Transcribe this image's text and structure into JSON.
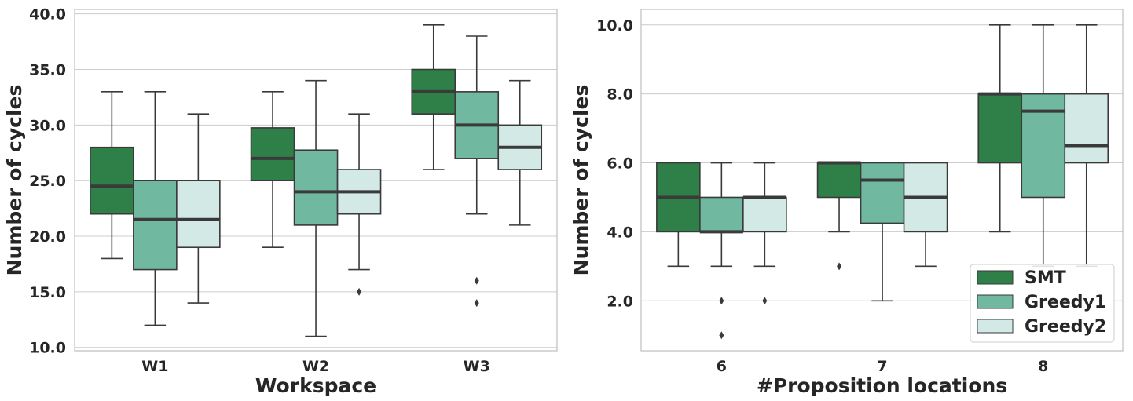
{
  "colors": {
    "SMT": "#2e7f48",
    "Greedy1": "#70b8a0",
    "Greedy2": "#d2e9e5",
    "line": "#3a3a3a",
    "grid": "#cccccc",
    "axis": "#bfbfbf",
    "text": "#262626"
  },
  "chart_data": [
    {
      "type": "box",
      "title": "",
      "xlabel": "Workspace",
      "ylabel": "Number of cycles",
      "categories": [
        "W1",
        "W2",
        "W3"
      ],
      "ylim": [
        9.7,
        40.4
      ],
      "yticks": [
        10,
        15,
        20,
        25,
        30,
        35,
        40
      ],
      "ytick_labels": [
        "10.0",
        "15.0",
        "20.0",
        "25.0",
        "30.0",
        "35.0",
        "40.0"
      ],
      "grid": true,
      "series": [
        {
          "name": "SMT",
          "boxes": [
            {
              "whislo": 18,
              "q1": 22,
              "med": 24.5,
              "q3": 28,
              "whishi": 33,
              "fliers": []
            },
            {
              "whislo": 19,
              "q1": 25,
              "med": 27,
              "q3": 29.75,
              "whishi": 33,
              "fliers": []
            },
            {
              "whislo": 26,
              "q1": 31,
              "med": 33,
              "q3": 35,
              "whishi": 39,
              "fliers": []
            }
          ]
        },
        {
          "name": "Greedy1",
          "boxes": [
            {
              "whislo": 12,
              "q1": 17,
              "med": 21.5,
              "q3": 25,
              "whishi": 33,
              "fliers": []
            },
            {
              "whislo": 11,
              "q1": 21,
              "med": 24,
              "q3": 27.75,
              "whishi": 34,
              "fliers": []
            },
            {
              "whislo": 22,
              "q1": 27,
              "med": 30,
              "q3": 33,
              "whishi": 38,
              "fliers": [
                16,
                14
              ]
            }
          ]
        },
        {
          "name": "Greedy2",
          "boxes": [
            {
              "whislo": 14,
              "q1": 19,
              "med": 21.5,
              "q3": 25,
              "whishi": 31,
              "fliers": []
            },
            {
              "whislo": 17,
              "q1": 22,
              "med": 24,
              "q3": 26,
              "whishi": 31,
              "fliers": [
                15
              ]
            },
            {
              "whislo": 21,
              "q1": 26,
              "med": 28,
              "q3": 30,
              "whishi": 34,
              "fliers": []
            }
          ]
        }
      ]
    },
    {
      "type": "box",
      "title": "",
      "xlabel": "#Proposition locations",
      "ylabel": "Number of cycles",
      "categories": [
        "6",
        "7",
        "8"
      ],
      "ylim": [
        0.55,
        10.45
      ],
      "yticks": [
        2,
        4,
        6,
        8,
        10
      ],
      "ytick_labels": [
        "2.0",
        "4.0",
        "6.0",
        "8.0",
        "10.0"
      ],
      "grid": true,
      "legend": {
        "placement": "lower-right",
        "entries": [
          "SMT",
          "Greedy1",
          "Greedy2"
        ]
      },
      "series": [
        {
          "name": "SMT",
          "boxes": [
            {
              "whislo": 3,
              "q1": 4,
              "med": 5,
              "q3": 6,
              "whishi": 6,
              "fliers": []
            },
            {
              "whislo": 4,
              "q1": 5,
              "med": 6,
              "q3": 6,
              "whishi": 6,
              "fliers": [
                3
              ]
            },
            {
              "whislo": 4,
              "q1": 6,
              "med": 8,
              "q3": 8,
              "whishi": 10,
              "fliers": []
            }
          ]
        },
        {
          "name": "Greedy1",
          "boxes": [
            {
              "whislo": 3,
              "q1": 4,
              "med": 4,
              "q3": 5,
              "whishi": 6,
              "fliers": [
                2,
                1
              ]
            },
            {
              "whislo": 2,
              "q1": 4.25,
              "med": 5.5,
              "q3": 6,
              "whishi": 6,
              "fliers": []
            },
            {
              "whislo": 3,
              "q1": 5,
              "med": 7.5,
              "q3": 8,
              "whishi": 10,
              "fliers": []
            }
          ]
        },
        {
          "name": "Greedy2",
          "boxes": [
            {
              "whislo": 3,
              "q1": 4,
              "med": 5,
              "q3": 5,
              "whishi": 6,
              "fliers": [
                2
              ]
            },
            {
              "whislo": 3,
              "q1": 4,
              "med": 5,
              "q3": 6,
              "whishi": 6,
              "fliers": []
            },
            {
              "whislo": 3,
              "q1": 6,
              "med": 6.5,
              "q3": 8,
              "whishi": 10,
              "fliers": []
            }
          ]
        }
      ]
    }
  ]
}
